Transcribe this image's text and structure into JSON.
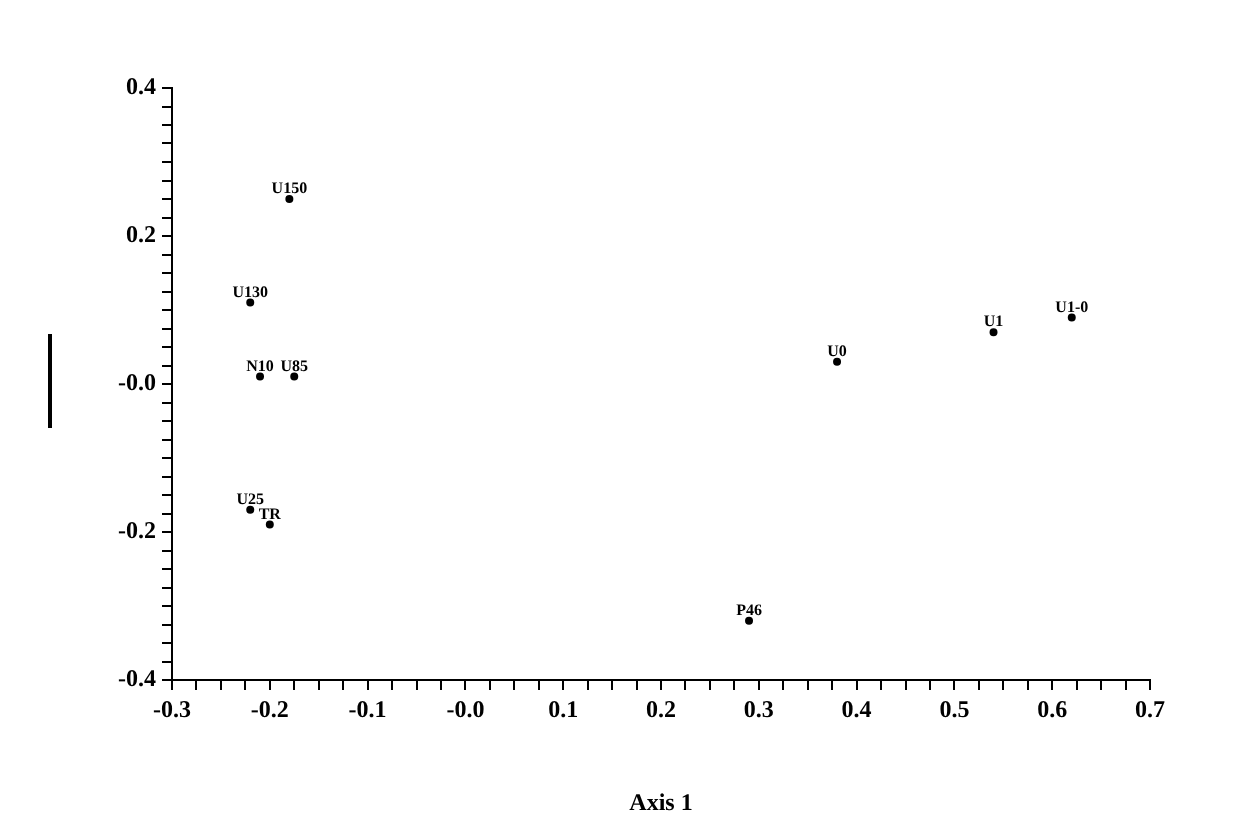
{
  "chart_data": {
    "type": "scatter",
    "xlabel": "Axis 1",
    "marker": "circle",
    "grid": false,
    "legend": false,
    "xlim": [
      -0.3,
      0.7
    ],
    "xticks": [
      -0.3,
      {
        "value": -0.275,
        "label": null
      },
      {
        "value": -0.25,
        "label": null
      },
      {
        "value": -0.225,
        "label": null
      },
      -0.2,
      {
        "value": -0.175,
        "label": null
      },
      {
        "value": -0.15,
        "label": null
      },
      {
        "value": -0.125,
        "label": null
      },
      -0.1,
      {
        "value": -0.075,
        "label": null
      },
      {
        "value": -0.05,
        "label": null
      },
      {
        "value": -0.025,
        "label": null
      },
      {
        "value": 0,
        "label": "-0.0"
      },
      {
        "value": 0.025,
        "label": null
      },
      {
        "value": 0.05,
        "label": null
      },
      {
        "value": 0.075,
        "label": null
      },
      0.1,
      {
        "value": 0.125,
        "label": null
      },
      {
        "value": 0.15,
        "label": null
      },
      {
        "value": 0.175,
        "label": null
      },
      0.2,
      {
        "value": 0.225,
        "label": null
      },
      {
        "value": 0.25,
        "label": null
      },
      {
        "value": 0.275,
        "label": null
      },
      0.3,
      {
        "value": 0.325,
        "label": null
      },
      {
        "value": 0.35,
        "label": null
      },
      {
        "value": 0.375,
        "label": null
      },
      0.4,
      {
        "value": 0.425,
        "label": null
      },
      {
        "value": 0.45,
        "label": null
      },
      {
        "value": 0.475,
        "label": null
      },
      0.5,
      {
        "value": 0.525,
        "label": null
      },
      {
        "value": 0.55,
        "label": null
      },
      {
        "value": 0.575,
        "label": null
      },
      0.6,
      {
        "value": 0.625,
        "label": null
      },
      {
        "value": 0.65,
        "label": null
      },
      {
        "value": 0.675,
        "label": null
      },
      0.7
    ],
    "ylim": [
      -0.4,
      0.4
    ],
    "yticks": [
      -0.4,
      {
        "value": -0.375,
        "label": null
      },
      {
        "value": -0.35,
        "label": null
      },
      {
        "value": -0.325,
        "label": null
      },
      {
        "value": -0.3,
        "label": null
      },
      {
        "value": -0.275,
        "label": null
      },
      {
        "value": -0.25,
        "label": null
      },
      {
        "value": -0.225,
        "label": null
      },
      -0.2,
      {
        "value": -0.175,
        "label": null
      },
      {
        "value": -0.15,
        "label": null
      },
      {
        "value": -0.125,
        "label": null
      },
      {
        "value": -0.1,
        "label": null
      },
      {
        "value": -0.075,
        "label": null
      },
      {
        "value": -0.05,
        "label": null
      },
      {
        "value": -0.025,
        "label": null
      },
      {
        "value": 0,
        "label": "-0.0"
      },
      {
        "value": 0.025,
        "label": null
      },
      {
        "value": 0.05,
        "label": null
      },
      {
        "value": 0.075,
        "label": null
      },
      {
        "value": 0.1,
        "label": null
      },
      {
        "value": 0.125,
        "label": null
      },
      {
        "value": 0.15,
        "label": null
      },
      {
        "value": 0.175,
        "label": null
      },
      0.2,
      {
        "value": 0.225,
        "label": null
      },
      {
        "value": 0.25,
        "label": null
      },
      {
        "value": 0.275,
        "label": null
      },
      {
        "value": 0.3,
        "label": null
      },
      {
        "value": 0.325,
        "label": null
      },
      {
        "value": 0.35,
        "label": null
      },
      {
        "value": 0.375,
        "label": null
      },
      0.4
    ],
    "series": [
      {
        "color": "#000000",
        "x": [
          -0.18,
          -0.22,
          -0.21,
          -0.175,
          -0.22,
          -0.2,
          0.38,
          0.54,
          0.62,
          0.29
        ],
        "values": [
          0.25,
          0.11,
          0.01,
          0.01,
          -0.17,
          -0.19,
          0.03,
          0.07,
          0.09,
          -0.32
        ]
      }
    ],
    "annotations": [
      {
        "text": "U150",
        "x": -0.18,
        "y": 0.25
      },
      {
        "text": "U130",
        "x": -0.22,
        "y": 0.11
      },
      {
        "text": "N10",
        "x": -0.21,
        "y": 0.01
      },
      {
        "text": "U85",
        "x": -0.175,
        "y": 0.01
      },
      {
        "text": "U25",
        "x": -0.22,
        "y": -0.17
      },
      {
        "text": "TR",
        "x": -0.2,
        "y": -0.19
      },
      {
        "text": "U0",
        "x": 0.38,
        "y": 0.03
      },
      {
        "text": "U1",
        "x": 0.54,
        "y": 0.07
      },
      {
        "text": "U1-0",
        "x": 0.62,
        "y": 0.09
      },
      {
        "text": "P46",
        "x": 0.29,
        "y": -0.32
      }
    ]
  }
}
